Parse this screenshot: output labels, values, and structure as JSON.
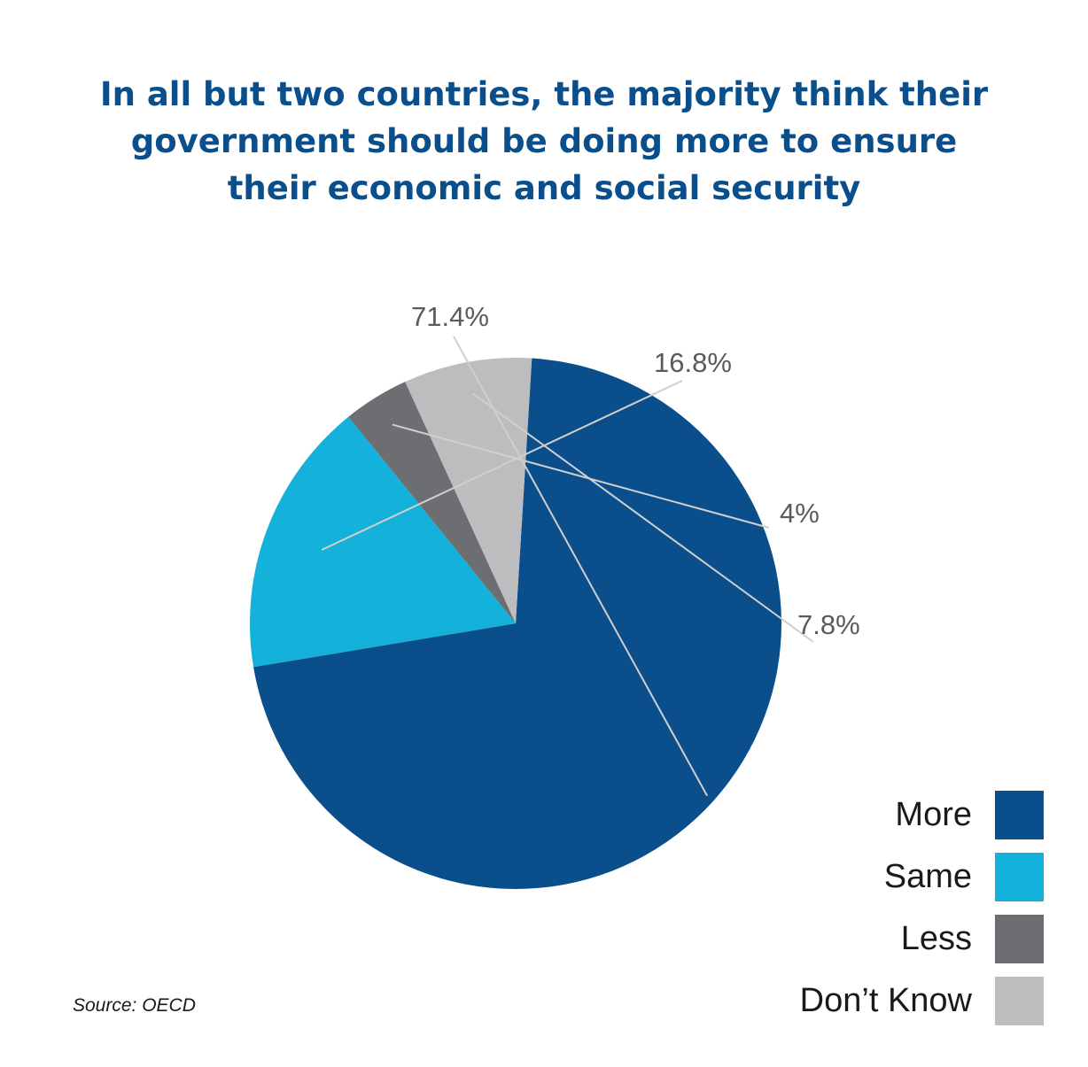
{
  "chart_data": {
    "type": "pie",
    "title_lines": [
      "In all but two countries, the majority think their",
      "government should be doing more to ensure",
      "their economic and social security"
    ],
    "slices": [
      {
        "name": "More",
        "value": 71.4,
        "label": "71.4%",
        "color": "#0a4f8c"
      },
      {
        "name": "Same",
        "value": 16.8,
        "label": "16.8%",
        "color": "#14b1da"
      },
      {
        "name": "Less",
        "value": 4,
        "label": "4%",
        "color": "#6c6e72"
      },
      {
        "name": "Don’t Know",
        "value": 7.8,
        "label": "7.8%",
        "color": "#bcbdbf"
      }
    ],
    "legend_position": "bottom-right",
    "source": "Source: OECD"
  }
}
